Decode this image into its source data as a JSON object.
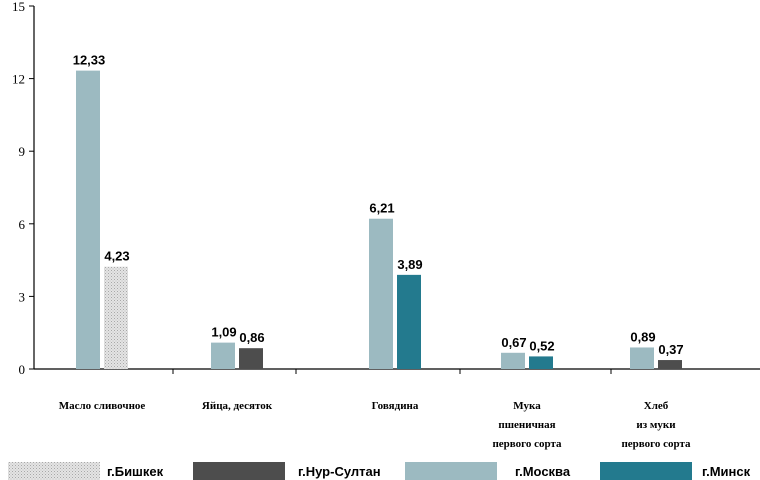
{
  "chart_data": {
    "type": "bar",
    "ylim": [
      0,
      15
    ],
    "yticks": [
      "0",
      "3",
      "6",
      "9",
      "12",
      "15"
    ],
    "categories": [
      {
        "id": "butter",
        "lines": [
          "Масло сливочное"
        ]
      },
      {
        "id": "eggs",
        "lines": [
          "Яйца,  десяток"
        ]
      },
      {
        "id": "beef",
        "lines": [
          "Говядина"
        ]
      },
      {
        "id": "flour",
        "lines": [
          "Мука",
          "пшеничная",
          "первого сорта"
        ]
      },
      {
        "id": "bread",
        "lines": [
          "Хлеб",
          "из муки",
          "первого сорта"
        ]
      }
    ],
    "series": [
      {
        "id": "bishkek",
        "name": "г.Бишкек",
        "color": "#d2d2d2",
        "pattern": "stipple"
      },
      {
        "id": "nursultan",
        "name": "г.Нур-Султан",
        "color": "#4d4d4d"
      },
      {
        "id": "moscow",
        "name": "г.Москва",
        "color": "#9cbac1"
      },
      {
        "id": "minsk",
        "name": "г.Минск",
        "color": "#237a8e"
      }
    ],
    "bars": [
      {
        "category": "butter",
        "series": "moscow",
        "value": 12.33,
        "label": "12,33"
      },
      {
        "category": "butter",
        "series": "bishkek",
        "value": 4.23,
        "label": "4,23"
      },
      {
        "category": "eggs",
        "series": "moscow",
        "value": 1.09,
        "label": "1,09"
      },
      {
        "category": "eggs",
        "series": "nursultan",
        "value": 0.86,
        "label": "0,86"
      },
      {
        "category": "beef",
        "series": "moscow",
        "value": 6.21,
        "label": "6,21"
      },
      {
        "category": "beef",
        "series": "minsk",
        "value": 3.89,
        "label": "3,89"
      },
      {
        "category": "flour",
        "series": "moscow",
        "value": 0.67,
        "label": "0,67"
      },
      {
        "category": "flour",
        "series": "minsk",
        "value": 0.52,
        "label": "0,52"
      },
      {
        "category": "bread",
        "series": "moscow",
        "value": 0.89,
        "label": "0,89"
      },
      {
        "category": "bread",
        "series": "nursultan",
        "value": 0.37,
        "label": "0,37"
      }
    ],
    "legend_position": "bottom",
    "grid": false
  }
}
